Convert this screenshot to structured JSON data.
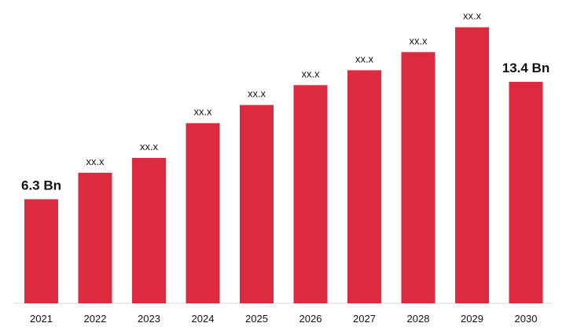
{
  "chart_data": {
    "type": "bar",
    "title": "",
    "xlabel": "",
    "ylabel": "",
    "categories": [
      "2021",
      "2022",
      "2023",
      "2024",
      "2025",
      "2026",
      "2027",
      "2028",
      "2029",
      "2030"
    ],
    "values": [
      6.3,
      7.9,
      8.8,
      10.9,
      12.0,
      13.2,
      14.1,
      15.2,
      16.7,
      13.4
    ],
    "data_labels": [
      "6.3 Bn",
      "xx.x",
      "xx.x",
      "xx.x",
      "xx.x",
      "xx.x",
      "xx.x",
      "xx.x",
      "xx.x",
      "13.4 Bn"
    ],
    "ylim": [
      0,
      17.4
    ],
    "bar_color": "#DC2B3F",
    "axis_color": "#D9D9D9",
    "grid": false,
    "legend": "none"
  }
}
